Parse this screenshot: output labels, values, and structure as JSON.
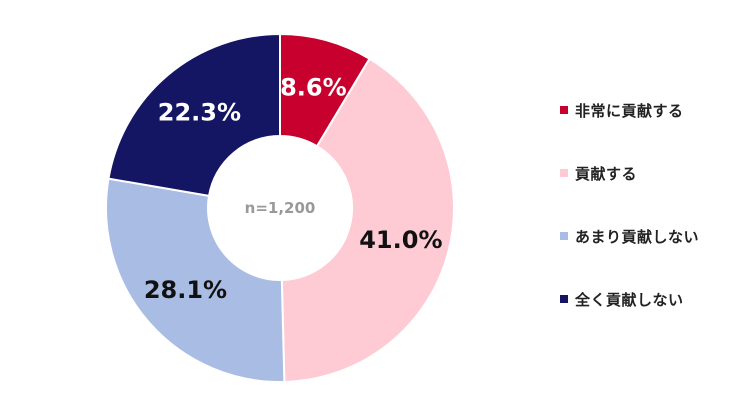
{
  "chart_data": {
    "type": "pie",
    "donut": true,
    "center_label": "n=1,200",
    "unit": "%",
    "legend_position": "right",
    "slices": [
      {
        "label": "非常に貢献する",
        "value": 8.6,
        "value_label": "8.6%",
        "color": "#c8002d",
        "text_color": "#ffffff"
      },
      {
        "label": "貢献する",
        "value": 41.0,
        "value_label": "41.0%",
        "color": "#fecbd5",
        "text_color": "#111111"
      },
      {
        "label": "あまり貢献しない",
        "value": 28.1,
        "value_label": "28.1%",
        "color": "#a9bce3",
        "text_color": "#111111"
      },
      {
        "label": "全く貢献しない",
        "value": 22.3,
        "value_label": "22.3%",
        "color": "#141664",
        "text_color": "#ffffff"
      }
    ]
  }
}
